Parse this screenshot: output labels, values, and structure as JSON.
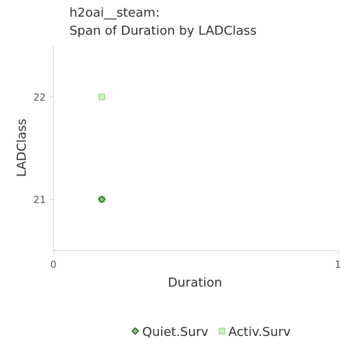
{
  "chart_data": {
    "type": "scatter",
    "title": [
      "h2oai__steam:",
      "Span of Duration by LADClass"
    ],
    "xlabel": "Duration",
    "ylabel": "LADClass",
    "xlim": [
      0,
      1
    ],
    "ylim": [
      20.5,
      22.5
    ],
    "xticks": [
      0,
      1
    ],
    "xtick_labels": [
      "0",
      "1"
    ],
    "yticks": [
      21,
      22
    ],
    "ytick_labels": [
      "21",
      "22"
    ],
    "grid": false,
    "legend_position": "bottom",
    "series": [
      {
        "name": "Quiet.Surv",
        "marker": "diamond",
        "color": "#2ca02c",
        "points": [
          {
            "x": 0.17,
            "y": 21
          }
        ]
      },
      {
        "name": "Activ.Surv",
        "marker": "square",
        "color": "#98df8a",
        "points": [
          {
            "x": 0.17,
            "y": 22
          },
          {
            "x": 0.17,
            "y": 21
          }
        ]
      }
    ]
  }
}
